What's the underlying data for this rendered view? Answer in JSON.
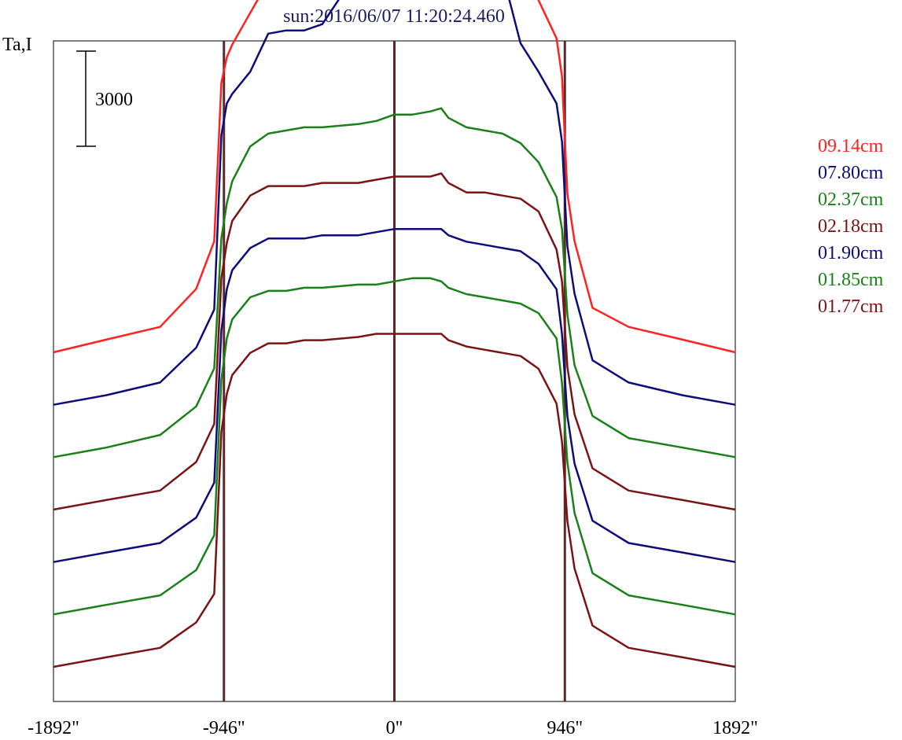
{
  "chart_data": {
    "type": "line",
    "title": "sun:2016/06/07 11:20:24.460",
    "ylabel": "Ta,I",
    "xlabel": "",
    "xlim": [
      -1892,
      1892
    ],
    "x_ticks": [
      {
        "value": -1892,
        "label": "-1892\""
      },
      {
        "value": -946,
        "label": "-946\""
      },
      {
        "value": 0,
        "label": "0\""
      },
      {
        "value": 946,
        "label": "946\""
      },
      {
        "value": 1892,
        "label": "1892\""
      }
    ],
    "vlines": [
      -946,
      0,
      946
    ],
    "vline_color": "#5a2a2a",
    "scale_bar": {
      "label": "3000",
      "value": 3000
    },
    "x": [
      -1892,
      -1600,
      -1300,
      -1100,
      -1000,
      -960,
      -930,
      -900,
      -800,
      -700,
      -600,
      -500,
      -400,
      -200,
      -100,
      0,
      100,
      200,
      260,
      300,
      400,
      500,
      600,
      700,
      800,
      900,
      930,
      960,
      1000,
      1100,
      1300,
      1600,
      1892
    ],
    "series": [
      {
        "name": "09.14cm",
        "color": "#ff2222",
        "y": [
          0,
          400,
          800,
          2000,
          3500,
          8500,
          9300,
          9700,
          10700,
          11700,
          12300,
          12300,
          12800,
          14900,
          15800,
          16500,
          17200,
          18100,
          18200,
          17000,
          15300,
          13800,
          14300,
          12600,
          11100,
          9900,
          8700,
          5000,
          3500,
          1400,
          800,
          400,
          0
        ]
      },
      {
        "name": "07.80cm",
        "color": "#0d0d7a",
        "y": [
          0,
          300,
          700,
          1800,
          3000,
          8500,
          9500,
          9800,
          10500,
          11700,
          11800,
          11800,
          12000,
          13700,
          14800,
          15300,
          15800,
          16700,
          16700,
          15400,
          13800,
          12800,
          13600,
          11400,
          10500,
          9500,
          8300,
          5000,
          3500,
          1400,
          700,
          300,
          0
        ]
      },
      {
        "name": "02.37cm",
        "color": "#1a801a",
        "y": [
          0,
          300,
          700,
          1600,
          2800,
          6900,
          8000,
          8700,
          9800,
          10200,
          10300,
          10400,
          10400,
          10500,
          10600,
          10800,
          10800,
          10900,
          11000,
          10700,
          10400,
          10300,
          10200,
          9900,
          9300,
          8200,
          7200,
          4500,
          2900,
          1300,
          600,
          300,
          0
        ]
      },
      {
        "name": "02.18cm",
        "color": "#7a1414",
        "y": [
          0,
          300,
          600,
          1500,
          2700,
          7300,
          8400,
          9100,
          9900,
          10200,
          10200,
          10200,
          10300,
          10300,
          10400,
          10500,
          10500,
          10500,
          10600,
          10300,
          10000,
          10000,
          9900,
          9800,
          9400,
          8200,
          7200,
          4500,
          3000,
          1300,
          600,
          300,
          0
        ]
      },
      {
        "name": "01.90cm",
        "color": "#0d0d7a",
        "y": [
          0,
          300,
          600,
          1400,
          2500,
          7300,
          8600,
          9200,
          9900,
          10200,
          10200,
          10200,
          10300,
          10300,
          10400,
          10500,
          10500,
          10500,
          10500,
          10300,
          10100,
          10000,
          9900,
          9800,
          9400,
          8600,
          7200,
          4600,
          3100,
          1300,
          600,
          300,
          0
        ]
      },
      {
        "name": "01.85cm",
        "color": "#1a801a",
        "y": [
          0,
          300,
          600,
          1400,
          2500,
          7400,
          8700,
          9300,
          10000,
          10200,
          10200,
          10300,
          10300,
          10400,
          10400,
          10500,
          10600,
          10600,
          10500,
          10300,
          10100,
          10000,
          9900,
          9800,
          9500,
          8700,
          7300,
          4800,
          3200,
          1300,
          600,
          300,
          0
        ]
      },
      {
        "name": "01.77cm",
        "color": "#7a1414",
        "y": [
          0,
          300,
          600,
          1400,
          2300,
          7400,
          8600,
          9200,
          9900,
          10200,
          10200,
          10300,
          10300,
          10400,
          10500,
          10500,
          10500,
          10500,
          10500,
          10300,
          10100,
          10000,
          9900,
          9800,
          9400,
          8300,
          7100,
          4600,
          3100,
          1300,
          600,
          300,
          0
        ]
      }
    ],
    "baseline_order": "top-to-bottom: 09.14cm, 07.80cm, 02.37cm, 02.18cm, 01.90cm, 01.85cm, 01.77cm",
    "series_offset": 3000,
    "legend_position": "right"
  }
}
